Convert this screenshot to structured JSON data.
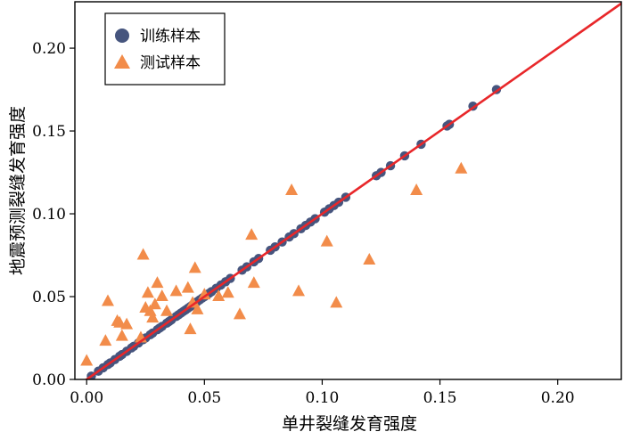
{
  "chart_data": {
    "type": "scatter",
    "title": "",
    "xlabel": "单井裂缝发育强度",
    "ylabel": "地震预测裂缝发育强度",
    "xlim": [
      -0.005,
      0.227
    ],
    "ylim": [
      0.0,
      0.228
    ],
    "x_ticks": [
      0.0,
      0.05,
      0.1,
      0.15,
      0.2
    ],
    "x_tick_labels": [
      "0.00",
      "0.05",
      "0.10",
      "0.15",
      "0.20"
    ],
    "y_ticks": [
      0.0,
      0.05,
      0.1,
      0.15,
      0.2
    ],
    "y_tick_labels": [
      "0.00",
      "0.05",
      "0.10",
      "0.15",
      "0.20"
    ],
    "grid": false,
    "legend_position": "top-left",
    "reference_line": {
      "type": "y=x",
      "color": "#e8272a"
    },
    "series": [
      {
        "name": "训练样本",
        "marker": "circle",
        "color": "#46557e",
        "points": [
          [
            0.002,
            0.002
          ],
          [
            0.005,
            0.005
          ],
          [
            0.007,
            0.007
          ],
          [
            0.009,
            0.009
          ],
          [
            0.01,
            0.01
          ],
          [
            0.012,
            0.012
          ],
          [
            0.014,
            0.014
          ],
          [
            0.015,
            0.015
          ],
          [
            0.017,
            0.017
          ],
          [
            0.019,
            0.019
          ],
          [
            0.02,
            0.02
          ],
          [
            0.022,
            0.022
          ],
          [
            0.024,
            0.024
          ],
          [
            0.025,
            0.025
          ],
          [
            0.027,
            0.027
          ],
          [
            0.028,
            0.028
          ],
          [
            0.03,
            0.03
          ],
          [
            0.031,
            0.031
          ],
          [
            0.032,
            0.032
          ],
          [
            0.034,
            0.034
          ],
          [
            0.035,
            0.035
          ],
          [
            0.036,
            0.036
          ],
          [
            0.038,
            0.038
          ],
          [
            0.039,
            0.039
          ],
          [
            0.04,
            0.04
          ],
          [
            0.041,
            0.041
          ],
          [
            0.042,
            0.042
          ],
          [
            0.043,
            0.043
          ],
          [
            0.044,
            0.044
          ],
          [
            0.045,
            0.045
          ],
          [
            0.046,
            0.046
          ],
          [
            0.047,
            0.047
          ],
          [
            0.048,
            0.048
          ],
          [
            0.049,
            0.049
          ],
          [
            0.05,
            0.05
          ],
          [
            0.051,
            0.051
          ],
          [
            0.052,
            0.052
          ],
          [
            0.053,
            0.053
          ],
          [
            0.055,
            0.055
          ],
          [
            0.057,
            0.057
          ],
          [
            0.059,
            0.059
          ],
          [
            0.061,
            0.061
          ],
          [
            0.066,
            0.066
          ],
          [
            0.068,
            0.068
          ],
          [
            0.071,
            0.071
          ],
          [
            0.073,
            0.073
          ],
          [
            0.078,
            0.078
          ],
          [
            0.08,
            0.08
          ],
          [
            0.083,
            0.083
          ],
          [
            0.086,
            0.086
          ],
          [
            0.088,
            0.088
          ],
          [
            0.091,
            0.091
          ],
          [
            0.093,
            0.093
          ],
          [
            0.095,
            0.095
          ],
          [
            0.097,
            0.097
          ],
          [
            0.101,
            0.101
          ],
          [
            0.103,
            0.103
          ],
          [
            0.105,
            0.105
          ],
          [
            0.107,
            0.107
          ],
          [
            0.11,
            0.11
          ],
          [
            0.123,
            0.123
          ],
          [
            0.125,
            0.125
          ],
          [
            0.129,
            0.129
          ],
          [
            0.135,
            0.135
          ],
          [
            0.142,
            0.142
          ],
          [
            0.153,
            0.153
          ],
          [
            0.154,
            0.154
          ],
          [
            0.164,
            0.165
          ],
          [
            0.174,
            0.175
          ]
        ]
      },
      {
        "name": "测试样本",
        "marker": "triangle",
        "color": "#f28c4a",
        "points": [
          [
            0.0,
            0.011
          ],
          [
            0.008,
            0.023
          ],
          [
            0.009,
            0.047
          ],
          [
            0.013,
            0.035
          ],
          [
            0.014,
            0.034
          ],
          [
            0.015,
            0.026
          ],
          [
            0.017,
            0.033
          ],
          [
            0.023,
            0.025
          ],
          [
            0.024,
            0.075
          ],
          [
            0.025,
            0.043
          ],
          [
            0.026,
            0.052
          ],
          [
            0.027,
            0.041
          ],
          [
            0.028,
            0.037
          ],
          [
            0.029,
            0.045
          ],
          [
            0.03,
            0.058
          ],
          [
            0.032,
            0.05
          ],
          [
            0.034,
            0.041
          ],
          [
            0.038,
            0.053
          ],
          [
            0.043,
            0.055
          ],
          [
            0.044,
            0.03
          ],
          [
            0.045,
            0.046
          ],
          [
            0.046,
            0.067
          ],
          [
            0.047,
            0.042
          ],
          [
            0.05,
            0.051
          ],
          [
            0.056,
            0.05
          ],
          [
            0.06,
            0.052
          ],
          [
            0.065,
            0.039
          ],
          [
            0.07,
            0.087
          ],
          [
            0.071,
            0.058
          ],
          [
            0.087,
            0.114
          ],
          [
            0.09,
            0.053
          ],
          [
            0.102,
            0.083
          ],
          [
            0.106,
            0.046
          ],
          [
            0.12,
            0.072
          ],
          [
            0.14,
            0.114
          ],
          [
            0.159,
            0.127
          ]
        ]
      }
    ]
  }
}
